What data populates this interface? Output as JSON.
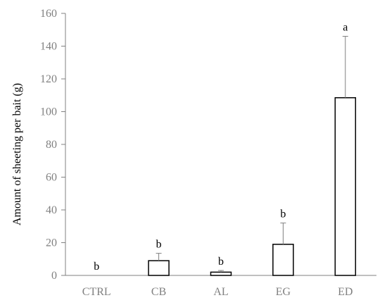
{
  "chart_data": {
    "type": "bar",
    "title": "",
    "xlabel": "",
    "ylabel": "Amount of sheeting per bait (g)",
    "ylim": [
      0,
      160
    ],
    "yticks": [
      0,
      20,
      40,
      60,
      80,
      100,
      120,
      140,
      160
    ],
    "ytick_labels": [
      "0",
      "20",
      "40",
      "60",
      "80",
      "100",
      "120",
      "140",
      "160"
    ],
    "categories": [
      "CTRL",
      "CB",
      "AL",
      "EG",
      "ED"
    ],
    "values": [
      0,
      9,
      2,
      19,
      108.5
    ],
    "error_upper": [
      0,
      4.5,
      1,
      13,
      37.5
    ],
    "significance_labels": [
      "b",
      "b",
      "b",
      "b",
      "a"
    ],
    "grid": false,
    "legend": "none",
    "colors": {
      "bar_fill": "#ffffff",
      "bar_stroke": "#000000",
      "axis": "#808080",
      "tick_text": "#808080",
      "error_bar": "#808080",
      "text": "#000000"
    }
  }
}
